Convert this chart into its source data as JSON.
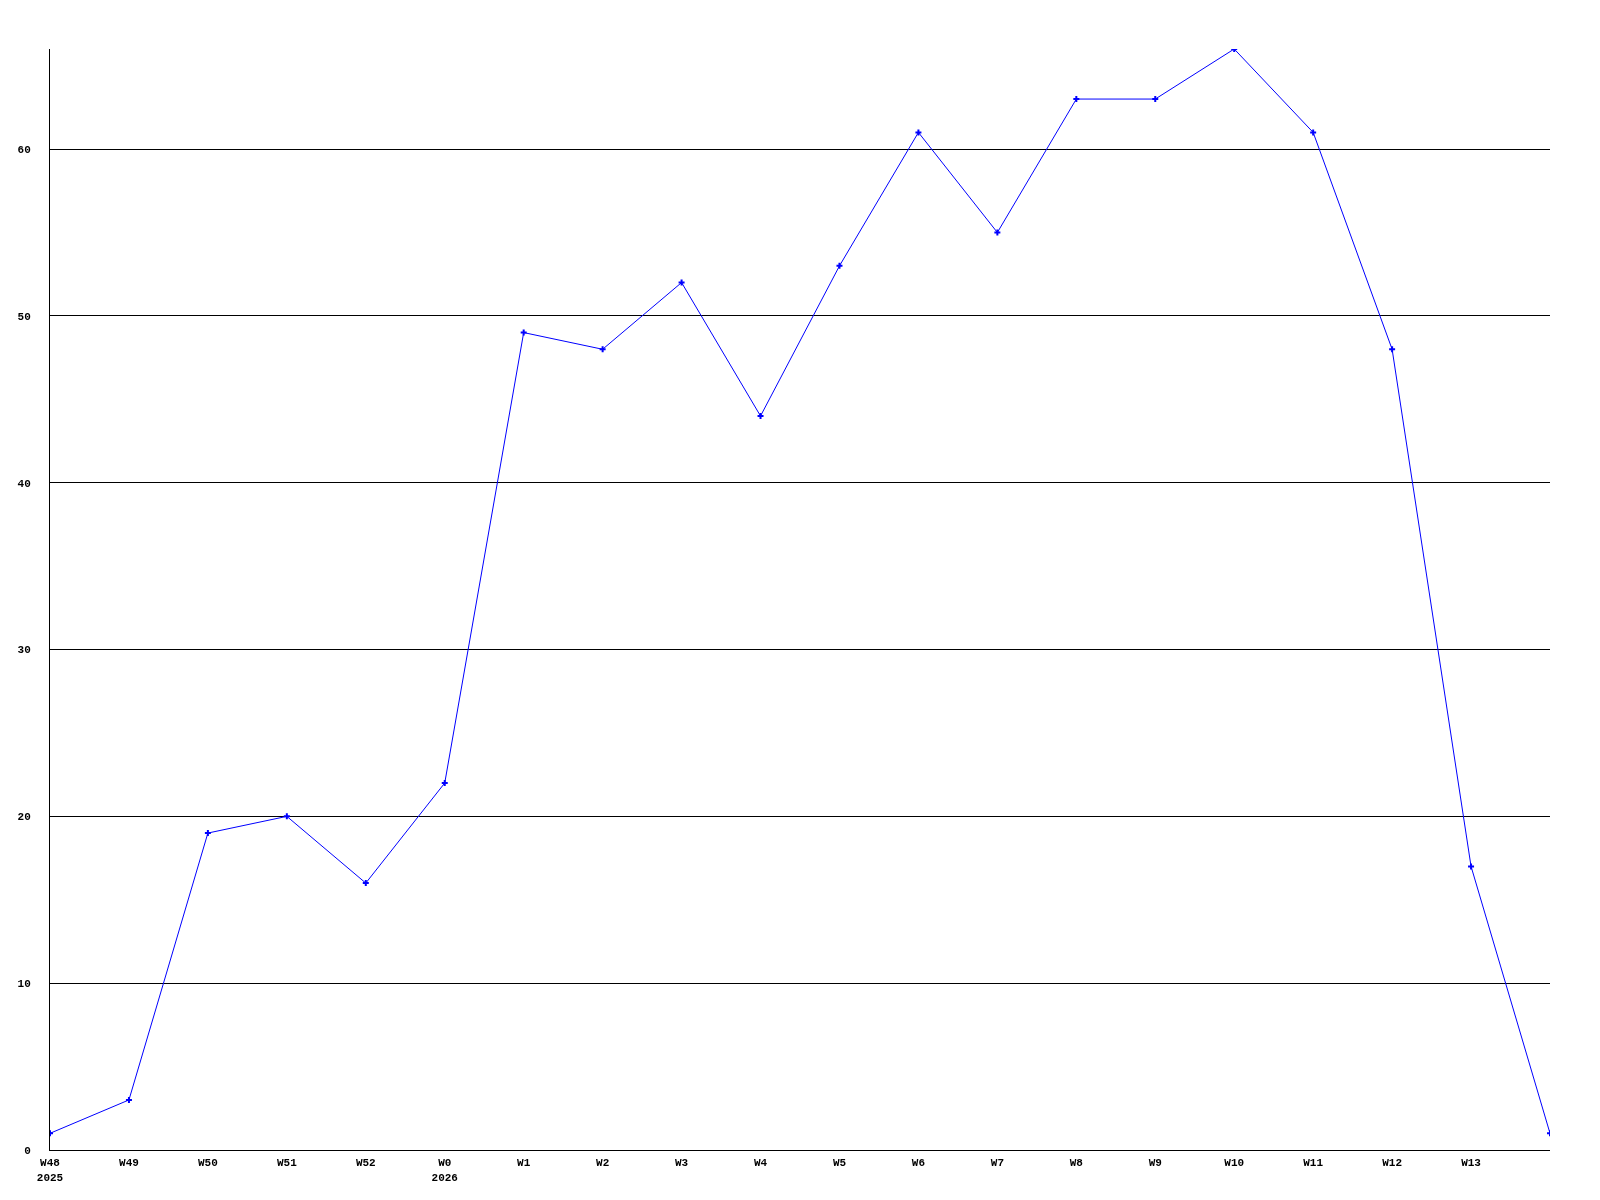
{
  "chart_data": {
    "type": "line",
    "categories": [
      "W48\n2025",
      "W49",
      "W50",
      "W51",
      "W52",
      "W0\n2026",
      "W1",
      "W2",
      "W3",
      "W4",
      "W5",
      "W6",
      "W7",
      "W8",
      "W9",
      "W10",
      "W11",
      "W12",
      "W13",
      null
    ],
    "series": [
      {
        "color": "#0000ff",
        "values": [
          1,
          3,
          19,
          20,
          16,
          22,
          49,
          48,
          52,
          44,
          53,
          61,
          55,
          63,
          63,
          66,
          61,
          48,
          17,
          1
        ]
      }
    ],
    "ylim": [
      0,
      66
    ],
    "yticks": [
      0,
      10,
      20,
      30,
      40,
      50,
      60
    ],
    "grid": "y",
    "marker": "cross",
    "line_style": "solid"
  }
}
